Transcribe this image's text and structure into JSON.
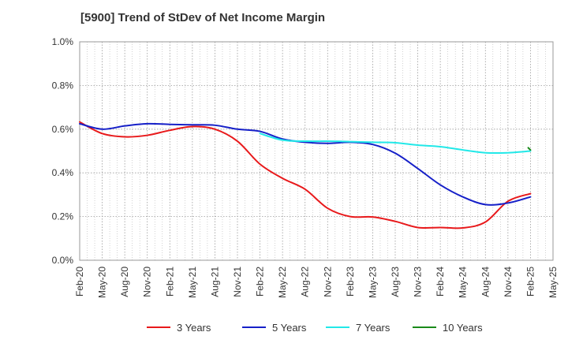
{
  "chart_data": {
    "type": "line",
    "title": "[5900]  Trend of StDev of Net Income Margin",
    "xlabel": "",
    "ylabel": "",
    "categories": [
      "Feb-20",
      "May-20",
      "Aug-20",
      "Nov-20",
      "Feb-21",
      "May-21",
      "Aug-21",
      "Nov-21",
      "Feb-22",
      "May-22",
      "Aug-22",
      "Nov-22",
      "Feb-23",
      "May-23",
      "Aug-23",
      "Nov-23",
      "Feb-24",
      "May-24",
      "Aug-24",
      "Nov-24",
      "Feb-25",
      "May-25"
    ],
    "y_ticks": [
      "0.0%",
      "0.2%",
      "0.4%",
      "0.6%",
      "0.8%",
      "1.0%"
    ],
    "ylim": [
      0,
      1.0
    ],
    "grid": true,
    "legend_position": "bottom",
    "series": [
      {
        "name": "3 Years",
        "color": "#e8191b",
        "values": [
          0.633,
          0.58,
          0.565,
          0.572,
          0.595,
          0.612,
          0.6,
          0.545,
          0.44,
          0.375,
          0.325,
          0.238,
          0.2,
          0.198,
          0.178,
          0.15,
          0.15,
          0.148,
          0.175,
          0.27,
          0.305,
          null
        ]
      },
      {
        "name": "5 Years",
        "color": "#1620c8",
        "values": [
          0.625,
          0.6,
          0.615,
          0.625,
          0.622,
          0.62,
          0.618,
          0.6,
          0.59,
          0.555,
          0.54,
          0.535,
          0.54,
          0.53,
          0.49,
          0.42,
          0.345,
          0.29,
          0.255,
          0.262,
          0.29,
          null
        ]
      },
      {
        "name": "7 Years",
        "color": "#22e8e8",
        "values": [
          null,
          null,
          null,
          null,
          null,
          null,
          null,
          null,
          0.58,
          0.55,
          0.545,
          0.545,
          0.543,
          0.54,
          0.538,
          0.527,
          0.52,
          0.505,
          0.492,
          0.492,
          0.5,
          null
        ]
      },
      {
        "name": "10 Years",
        "color": "#1a8a1a",
        "values": [
          null,
          null,
          null,
          null,
          null,
          null,
          null,
          null,
          null,
          null,
          null,
          null,
          null,
          null,
          null,
          null,
          null,
          null,
          null,
          null,
          0.505,
          null
        ],
        "start": {
          "index": 19.9,
          "value": 0.515
        }
      }
    ]
  }
}
